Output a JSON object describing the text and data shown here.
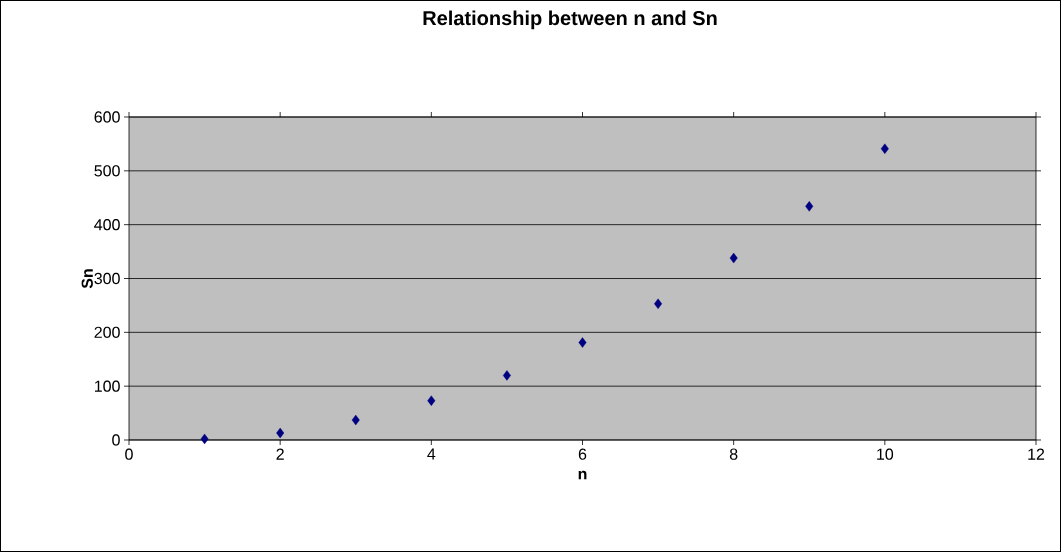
{
  "chart_data": {
    "type": "scatter",
    "title": "Relationship between n and Sn",
    "xlabel": "n",
    "ylabel": "Sn",
    "x": [
      1,
      2,
      3,
      4,
      5,
      6,
      7,
      8,
      9,
      10
    ],
    "values": [
      2,
      13,
      37,
      73,
      120,
      181,
      253,
      338,
      434,
      541
    ],
    "color": "#000080",
    "marker": "diamond",
    "xlim": [
      0,
      12
    ],
    "xticks": [
      0,
      2,
      4,
      6,
      8,
      10,
      12
    ],
    "ylim": [
      0,
      600
    ],
    "yticks": [
      0,
      100,
      200,
      300,
      400,
      500,
      600
    ],
    "grid": "y"
  }
}
